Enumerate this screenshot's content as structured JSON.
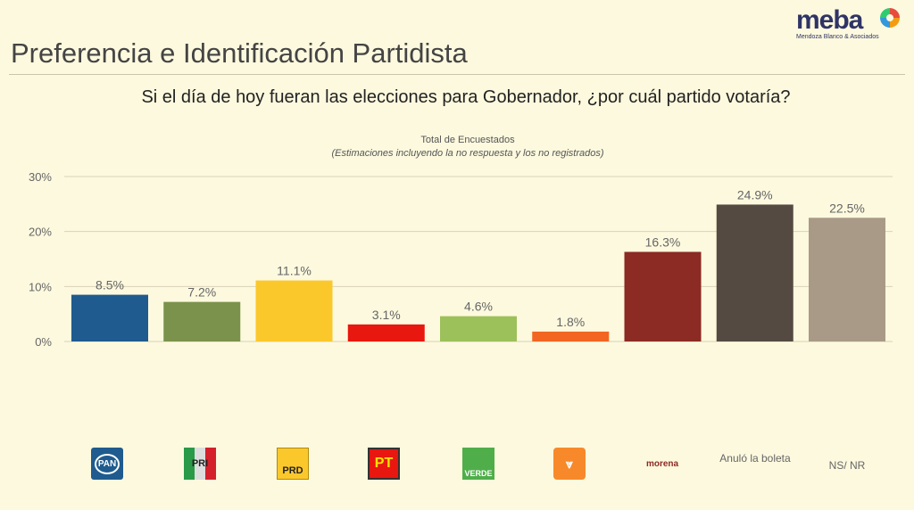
{
  "header": {
    "title": "Preferencia e Identificación Partidista",
    "question": "Si el día de hoy fueran las elecciones para Gobernador, ¿por cuál partido votaría?"
  },
  "logo": {
    "name": "meba",
    "subtitle": "Mendoza Blanco & Asociados"
  },
  "chart_data": {
    "type": "bar",
    "title": "Total de Encuestados",
    "subtitle": "(Estimaciones incluyendo la no respuesta y los no registrados)",
    "categories": [
      "PAN",
      "PRI",
      "PRD",
      "PT",
      "VERDE",
      "MC",
      "morena",
      "Anuló la boleta",
      "NS/ NR"
    ],
    "values": [
      8.5,
      7.2,
      11.1,
      3.1,
      4.6,
      1.8,
      16.3,
      24.9,
      22.5
    ],
    "labels": [
      "8.5%",
      "7.2%",
      "11.1%",
      "3.1%",
      "4.6%",
      "1.8%",
      "16.3%",
      "24.9%",
      "22.5%"
    ],
    "colors": [
      "#1f5b8e",
      "#7a924b",
      "#fbc82c",
      "#e8170f",
      "#9cc05a",
      "#f26522",
      "#8c2a24",
      "#554a42",
      "#a99a88"
    ],
    "yticks": [
      0,
      10,
      20,
      30
    ],
    "ytick_labels": [
      "0%",
      "10%",
      "20%",
      "30%"
    ],
    "ylim": [
      0,
      30
    ],
    "grid": true,
    "xlabel": "",
    "ylabel": ""
  },
  "parties": {
    "pan": "PAN",
    "pri": "PRI",
    "prd": "PRD",
    "pt": "PT",
    "verde": "VERDE",
    "morena": "morena",
    "anulo": "Anuló la boleta",
    "ns": "NS/ NR"
  }
}
